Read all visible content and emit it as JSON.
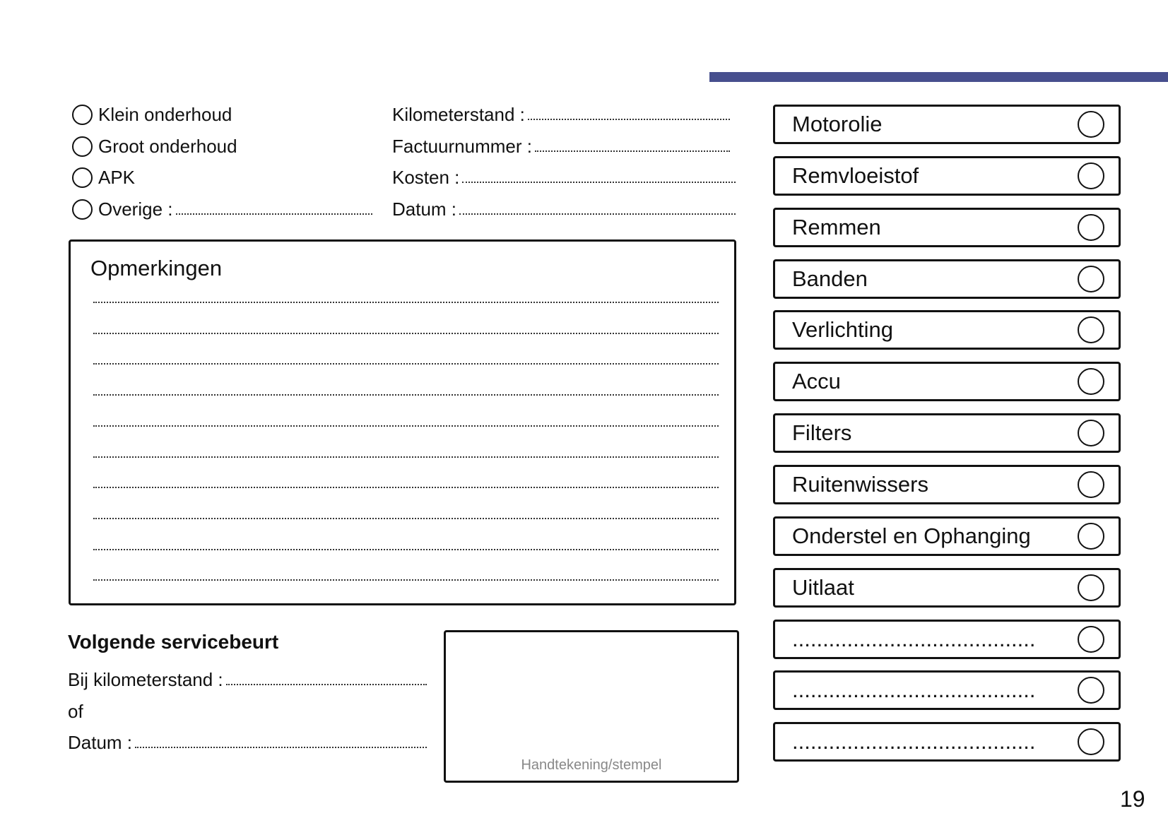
{
  "accent_color": "#474f8e",
  "service_types": [
    {
      "label": "Klein onderhoud",
      "has_fill": false
    },
    {
      "label": "Groot onderhoud",
      "has_fill": false
    },
    {
      "label": "APK",
      "has_fill": false
    },
    {
      "label": "Overige :",
      "has_fill": true
    }
  ],
  "fields": [
    {
      "label": "Kilometerstand :"
    },
    {
      "label": "Factuurnummer :"
    },
    {
      "label": "Kosten :"
    },
    {
      "label": "Datum :"
    }
  ],
  "remarks": {
    "title": "Opmerkingen",
    "line_count": 10
  },
  "checklist": [
    "Motorolie",
    "Remvloeistof",
    "Remmen",
    "Banden",
    "Verlichting",
    "Accu",
    "Filters",
    "Ruitenwissers",
    "Onderstel en Ophanging",
    "Uitlaat",
    "........................................",
    "........................................",
    "........................................"
  ],
  "next_service": {
    "title": "Volgende servicebeurt",
    "km_label": "Bij kilometerstand :",
    "or_label": "of",
    "date_label": "Datum :"
  },
  "signature": {
    "caption": "Handtekening/stempel"
  },
  "page_number": "19"
}
